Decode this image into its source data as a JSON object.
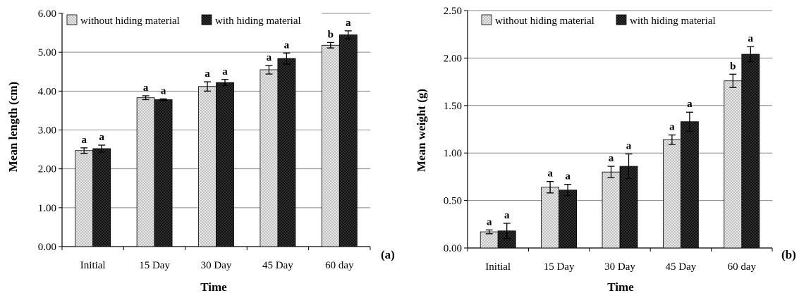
{
  "colors": {
    "series_light": "#e6e6e6",
    "series_light_dot": "#8a8a8a",
    "series_dark": "#111111",
    "series_dark_dot": "#7a7a7a",
    "grid": "#888888",
    "axis": "#000000",
    "text": "#000000"
  },
  "chart_data": [
    {
      "type": "bar",
      "panel_label": "(a)",
      "xlabel": "Time",
      "ylabel": "Mean length (cm)",
      "ylim": [
        0,
        6
      ],
      "ytick_step": 1,
      "ytick_labels": [
        "0.00",
        "1.00",
        "2.00",
        "3.00",
        "4.00",
        "5.00",
        "6.00"
      ],
      "grid": true,
      "legend_position": "top",
      "categories": [
        "Initial",
        "15 Day",
        "30 Day",
        "45 Day",
        "60 day"
      ],
      "series": [
        {
          "name": "without hiding material",
          "values": [
            2.47,
            3.83,
            4.12,
            4.55,
            5.18
          ],
          "errors": [
            0.07,
            0.05,
            0.12,
            0.11,
            0.07
          ],
          "letters": [
            "a",
            "a",
            "a",
            "a",
            "b"
          ]
        },
        {
          "name": "with hiding material",
          "values": [
            2.52,
            3.78,
            4.22,
            4.84,
            5.45
          ],
          "errors": [
            0.09,
            0.02,
            0.08,
            0.14,
            0.1
          ],
          "letters": [
            "a",
            "a",
            "a",
            "a",
            "a"
          ]
        }
      ]
    },
    {
      "type": "bar",
      "panel_label": "(b)",
      "xlabel": "Time",
      "ylabel": "Mean weight (g)",
      "ylim": [
        0,
        2.5
      ],
      "ytick_step": 0.5,
      "ytick_labels": [
        "0.00",
        "0.50",
        "1.00",
        "1.50",
        "2.00",
        "2.50"
      ],
      "grid": true,
      "legend_position": "top",
      "categories": [
        "Initial",
        "15 Day",
        "30 Day",
        "45 Day",
        "60 day"
      ],
      "series": [
        {
          "name": "without hiding material",
          "values": [
            0.17,
            0.64,
            0.8,
            1.14,
            1.76
          ],
          "errors": [
            0.02,
            0.06,
            0.06,
            0.05,
            0.07
          ],
          "letters": [
            "a",
            "a",
            "a",
            "a",
            "b"
          ]
        },
        {
          "name": "with hiding material",
          "values": [
            0.18,
            0.61,
            0.86,
            1.33,
            2.04
          ],
          "errors": [
            0.08,
            0.06,
            0.13,
            0.1,
            0.08
          ],
          "letters": [
            "a",
            "a",
            "a",
            "a",
            "a"
          ]
        }
      ]
    }
  ]
}
